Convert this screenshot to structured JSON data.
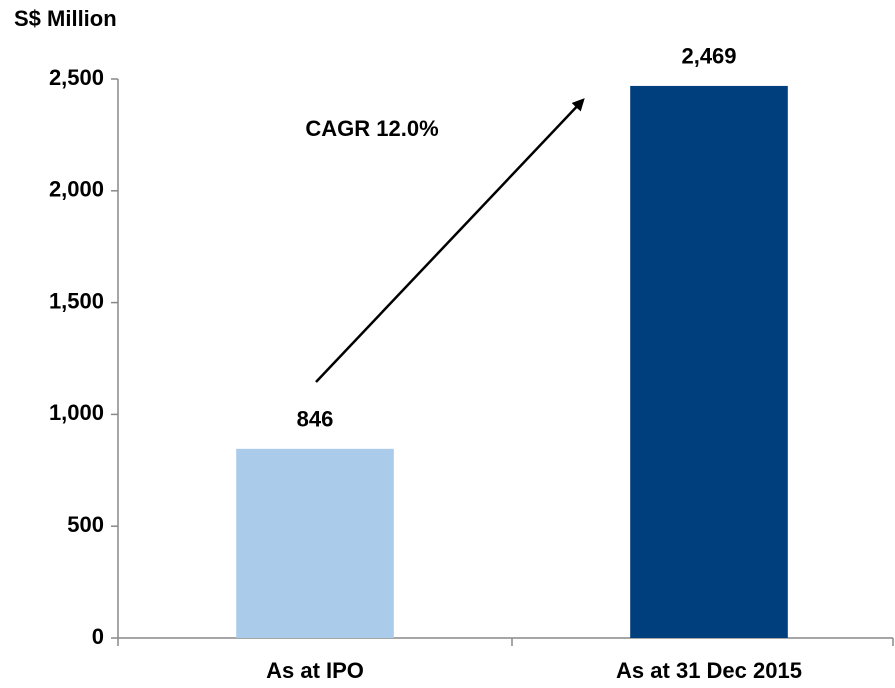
{
  "chart_data": {
    "type": "bar",
    "y_label": "S$ Million",
    "annotation": "CAGR 12.0%",
    "categories": [
      "As at IPO",
      "As at 31 Dec 2015"
    ],
    "values": [
      846,
      2469
    ],
    "value_labels": [
      "846",
      "2,469"
    ],
    "colors": [
      "#abcbea",
      "#003f7d"
    ],
    "ylim": [
      0,
      2500
    ],
    "yticks": [
      0,
      500,
      {
        "value": 1000,
        "label": "1,000"
      },
      {
        "value": 1500,
        "label": "1,500"
      },
      {
        "value": 2000,
        "label": "2,000"
      },
      {
        "value": 2500,
        "label": "2,500"
      }
    ],
    "grid": false
  }
}
